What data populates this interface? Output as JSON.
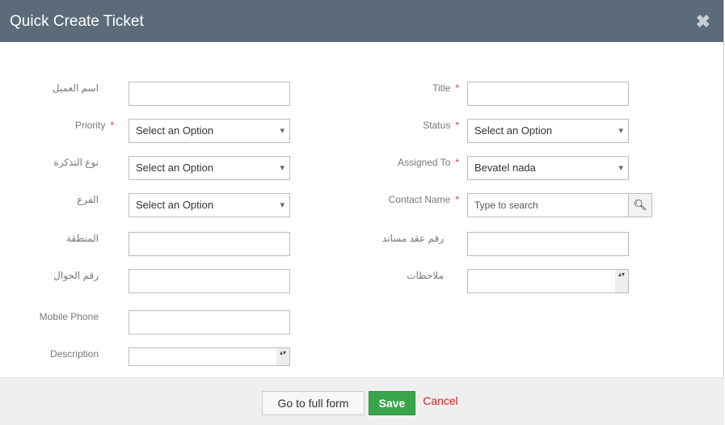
{
  "header": {
    "title": "Quick Create Ticket",
    "close_icon": "close-icon"
  },
  "left": [
    {
      "label": "اسم العميل",
      "type": "text",
      "value": "",
      "required": false
    },
    {
      "label": "Priority",
      "type": "select",
      "value": "Select an Option",
      "required": true
    },
    {
      "label": "نوع التذكرة",
      "type": "select",
      "value": "Select an Option",
      "required": false
    },
    {
      "label": "الفرع",
      "type": "select",
      "value": "Select an Option",
      "required": false
    },
    {
      "label": "المنطقة",
      "type": "text",
      "value": "",
      "required": false
    },
    {
      "label": "رقم الجوال",
      "type": "text",
      "value": "",
      "required": false
    },
    {
      "label": "Mobile Phone",
      "type": "text",
      "value": "",
      "required": false
    },
    {
      "label": "Description",
      "type": "textarea",
      "value": "",
      "required": false
    }
  ],
  "right": [
    {
      "label": "Title",
      "type": "text",
      "value": "",
      "required": true
    },
    {
      "label": "Status",
      "type": "select",
      "value": "Select an Option",
      "required": true
    },
    {
      "label": "Assigned To",
      "type": "select",
      "value": "Bevatel nada",
      "required": true
    },
    {
      "label": "Contact Name",
      "type": "search",
      "placeholder": "Type to search",
      "required": true
    },
    {
      "label": "رقم عقد مساند",
      "type": "text",
      "value": "",
      "required": false
    },
    {
      "label": "ملاحظات",
      "type": "textarea",
      "value": "",
      "required": false
    }
  ],
  "required_mark": "*",
  "footer": {
    "full_form": "Go to full form",
    "save": "Save",
    "cancel": "Cancel"
  },
  "colors": {
    "header": "#5b6b79",
    "save": "#3aa44a",
    "cancel": "#e02020"
  }
}
